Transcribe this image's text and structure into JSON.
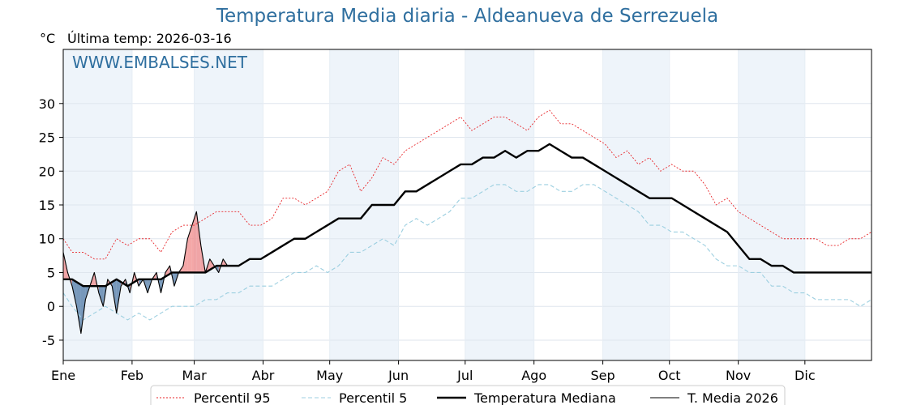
{
  "title": "Temperatura Media diaria - Aldeanueva de Serrezuela",
  "unit": "°C",
  "last_temp": "Última temp: 2026-03-16",
  "watermark": "WWW.EMBALSES.NET",
  "colors": {
    "title": "#2f6f9f",
    "p95": "#e8262a",
    "p5": "#9ccfe0",
    "median": "#000000",
    "current": "#000000",
    "above": "#f08a8a",
    "below": "#4f7aa6",
    "band": "#eef4fa"
  },
  "chart_data": {
    "type": "line",
    "title": "Temperatura Media diaria - Aldeanueva de Serrezuela",
    "ylabel": "°C",
    "xlabel": "",
    "ylim": [
      -8,
      38
    ],
    "xlim": [
      1,
      365
    ],
    "yticks": [
      -5,
      0,
      5,
      10,
      15,
      20,
      25,
      30
    ],
    "month_ticks": [
      {
        "day": 1,
        "label": "Ene"
      },
      {
        "day": 32,
        "label": "Feb"
      },
      {
        "day": 60,
        "label": "Mar"
      },
      {
        "day": 91,
        "label": "Abr"
      },
      {
        "day": 121,
        "label": "May"
      },
      {
        "day": 152,
        "label": "Jun"
      },
      {
        "day": 182,
        "label": "Jul"
      },
      {
        "day": 213,
        "label": "Ago"
      },
      {
        "day": 244,
        "label": "Sep"
      },
      {
        "day": 274,
        "label": "Oct"
      },
      {
        "day": 305,
        "label": "Nov"
      },
      {
        "day": 335,
        "label": "Dic"
      }
    ],
    "x_unit": "day of year",
    "grid": true,
    "legend_position": "bottom",
    "series": [
      {
        "name": "Percentil 95",
        "style": "dotted",
        "color": "#e8262a",
        "x": [
          1,
          5,
          10,
          15,
          20,
          25,
          30,
          35,
          40,
          45,
          50,
          55,
          60,
          65,
          70,
          75,
          80,
          85,
          90,
          95,
          100,
          105,
          110,
          115,
          120,
          125,
          130,
          135,
          140,
          145,
          150,
          155,
          160,
          165,
          170,
          175,
          180,
          185,
          190,
          195,
          200,
          205,
          210,
          215,
          220,
          225,
          230,
          235,
          240,
          245,
          250,
          255,
          260,
          265,
          270,
          275,
          280,
          285,
          290,
          295,
          300,
          305,
          310,
          315,
          320,
          325,
          330,
          335,
          340,
          345,
          350,
          355,
          360,
          365
        ],
        "values": [
          10,
          8,
          8,
          7,
          7,
          10,
          9,
          10,
          10,
          8,
          11,
          12,
          12,
          13,
          14,
          14,
          14,
          12,
          12,
          13,
          16,
          16,
          15,
          16,
          17,
          20,
          21,
          17,
          19,
          22,
          21,
          23,
          24,
          25,
          26,
          27,
          28,
          26,
          27,
          28,
          28,
          27,
          26,
          28,
          29,
          27,
          27,
          26,
          25,
          24,
          22,
          23,
          21,
          22,
          20,
          21,
          20,
          20,
          18,
          15,
          16,
          14,
          13,
          12,
          11,
          10,
          10,
          10,
          10,
          9,
          9,
          10,
          10,
          11
        ]
      },
      {
        "name": "Percentil 5",
        "style": "dashed",
        "color": "#9ccfe0",
        "x": [
          1,
          5,
          10,
          15,
          20,
          25,
          30,
          35,
          40,
          45,
          50,
          55,
          60,
          65,
          70,
          75,
          80,
          85,
          90,
          95,
          100,
          105,
          110,
          115,
          120,
          125,
          130,
          135,
          140,
          145,
          150,
          155,
          160,
          165,
          170,
          175,
          180,
          185,
          190,
          195,
          200,
          205,
          210,
          215,
          220,
          225,
          230,
          235,
          240,
          245,
          250,
          255,
          260,
          265,
          270,
          275,
          280,
          285,
          290,
          295,
          300,
          305,
          310,
          315,
          320,
          325,
          330,
          335,
          340,
          345,
          350,
          355,
          360,
          365
        ],
        "values": [
          2,
          0,
          -2,
          -1,
          0,
          -1,
          -2,
          -1,
          -2,
          -1,
          0,
          0,
          0,
          1,
          1,
          2,
          2,
          3,
          3,
          3,
          4,
          5,
          5,
          6,
          5,
          6,
          8,
          8,
          9,
          10,
          9,
          12,
          13,
          12,
          13,
          14,
          16,
          16,
          17,
          18,
          18,
          17,
          17,
          18,
          18,
          17,
          17,
          18,
          18,
          17,
          16,
          15,
          14,
          12,
          12,
          11,
          11,
          10,
          9,
          7,
          6,
          6,
          5,
          5,
          3,
          3,
          2,
          2,
          1,
          1,
          1,
          1,
          0,
          1
        ]
      },
      {
        "name": "Temperatura Mediana",
        "style": "solid-thick",
        "color": "#000000",
        "x": [
          1,
          5,
          10,
          15,
          20,
          25,
          30,
          35,
          40,
          45,
          50,
          55,
          60,
          65,
          70,
          75,
          80,
          85,
          90,
          95,
          100,
          105,
          110,
          115,
          120,
          125,
          130,
          135,
          140,
          145,
          150,
          155,
          160,
          165,
          170,
          175,
          180,
          185,
          190,
          195,
          200,
          205,
          210,
          215,
          220,
          225,
          230,
          235,
          240,
          245,
          250,
          255,
          260,
          265,
          270,
          275,
          280,
          285,
          290,
          295,
          300,
          305,
          310,
          315,
          320,
          325,
          330,
          335,
          340,
          345,
          350,
          355,
          360,
          365
        ],
        "values": [
          4,
          4,
          3,
          3,
          3,
          4,
          3,
          4,
          4,
          4,
          5,
          5,
          5,
          5,
          6,
          6,
          6,
          7,
          7,
          8,
          9,
          10,
          10,
          11,
          12,
          13,
          13,
          13,
          15,
          15,
          15,
          17,
          17,
          18,
          19,
          20,
          21,
          21,
          22,
          22,
          23,
          22,
          23,
          23,
          24,
          23,
          22,
          22,
          21,
          20,
          19,
          18,
          17,
          16,
          16,
          16,
          15,
          14,
          13,
          12,
          11,
          9,
          7,
          7,
          6,
          6,
          5,
          5,
          5,
          5,
          5,
          5,
          5,
          5
        ]
      },
      {
        "name": "T. Media 2026",
        "style": "solid-thin",
        "color": "#000000",
        "x": [
          1,
          3,
          5,
          7,
          9,
          11,
          13,
          15,
          17,
          19,
          21,
          23,
          25,
          27,
          29,
          31,
          33,
          35,
          37,
          39,
          41,
          43,
          45,
          47,
          49,
          51,
          53,
          55,
          57,
          59,
          61,
          63,
          65,
          67,
          69,
          71,
          73,
          75
        ],
        "values": [
          8,
          5,
          3,
          0,
          -4,
          1,
          3,
          5,
          2,
          0,
          4,
          3,
          -1,
          3,
          4,
          2,
          5,
          3,
          4,
          2,
          4,
          5,
          2,
          5,
          6,
          3,
          5,
          6,
          10,
          12,
          14,
          9,
          5,
          7,
          6,
          5,
          7,
          6
        ]
      }
    ]
  },
  "legend": [
    {
      "label": "Percentil 95",
      "style": "dotted",
      "color": "#e8262a"
    },
    {
      "label": "Percentil 5",
      "style": "dashed",
      "color": "#9ccfe0"
    },
    {
      "label": "Temperatura Mediana",
      "style": "solid-thick",
      "color": "#000000"
    },
    {
      "label": "T. Media 2026",
      "style": "solid-thin",
      "color": "#000000"
    }
  ]
}
